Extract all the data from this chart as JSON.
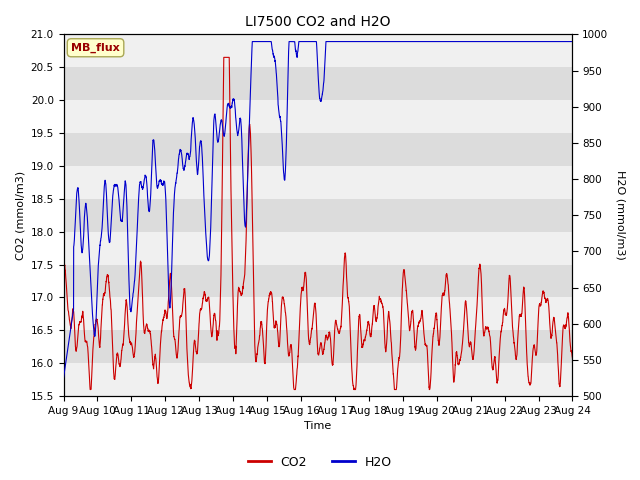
{
  "title": "LI7500 CO2 and H2O",
  "xlabel": "Time",
  "ylabel_left": "CO2 (mmol/m3)",
  "ylabel_right": "H2O (mmol/m3)",
  "co2_ylim": [
    15.5,
    21.0
  ],
  "h2o_ylim": [
    500,
    1000
  ],
  "co2_yticks": [
    15.5,
    16.0,
    16.5,
    17.0,
    17.5,
    18.0,
    18.5,
    19.0,
    19.5,
    20.0,
    20.5,
    21.0
  ],
  "h2o_yticks": [
    500,
    550,
    600,
    650,
    700,
    750,
    800,
    850,
    900,
    950,
    1000
  ],
  "xtick_labels": [
    "Aug 9",
    "Aug 10",
    "Aug 11",
    "Aug 12",
    "Aug 13",
    "Aug 14",
    "Aug 15",
    "Aug 16",
    "Aug 17",
    "Aug 18",
    "Aug 19",
    "Aug 20",
    "Aug 21",
    "Aug 22",
    "Aug 23",
    "Aug 24"
  ],
  "co2_color": "#cc0000",
  "h2o_color": "#0000cc",
  "annotation_text": "MB_flux",
  "annotation_facecolor": "#ffffcc",
  "annotation_edgecolor": "#aaa855",
  "annotation_textcolor": "#990000",
  "bg_light": "#f0f0f0",
  "bg_dark": "#dcdcdc",
  "legend_co2": "CO2",
  "legend_h2o": "H2O",
  "linewidth": 0.8,
  "title_fontsize": 10,
  "label_fontsize": 8,
  "tick_fontsize": 7.5,
  "annot_fontsize": 8
}
